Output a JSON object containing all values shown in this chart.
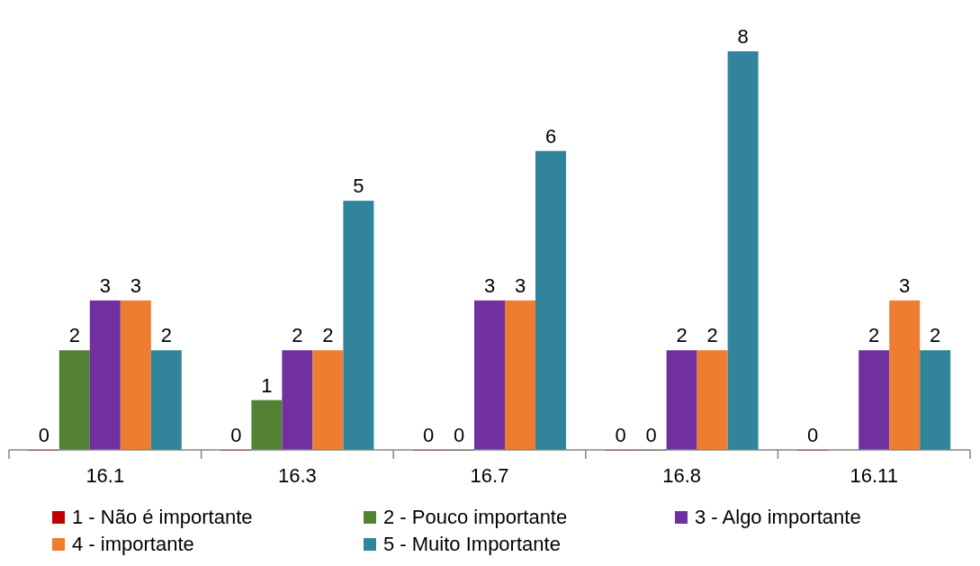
{
  "chart_data": {
    "type": "bar",
    "categories": [
      "16.1",
      "16.3",
      "16.7",
      "16.8",
      "16.11"
    ],
    "series": [
      {
        "name": "1 - Não é importante",
        "color": "#c00000",
        "values": [
          0,
          0,
          0,
          0,
          0
        ]
      },
      {
        "name": "2 - Pouco importante",
        "color": "#548235",
        "values": [
          2,
          1,
          0,
          0,
          null
        ]
      },
      {
        "name": "3 - Algo importante",
        "color": "#7030a0",
        "values": [
          3,
          2,
          3,
          2,
          2
        ]
      },
      {
        "name": "4 - importante",
        "color": "#ed7d31",
        "values": [
          3,
          2,
          3,
          2,
          3
        ]
      },
      {
        "name": "5 - Muito Importante",
        "color": "#31849b",
        "values": [
          2,
          5,
          6,
          8,
          2
        ]
      }
    ],
    "data_labels": true,
    "legend": "bottom",
    "grid": false
  }
}
